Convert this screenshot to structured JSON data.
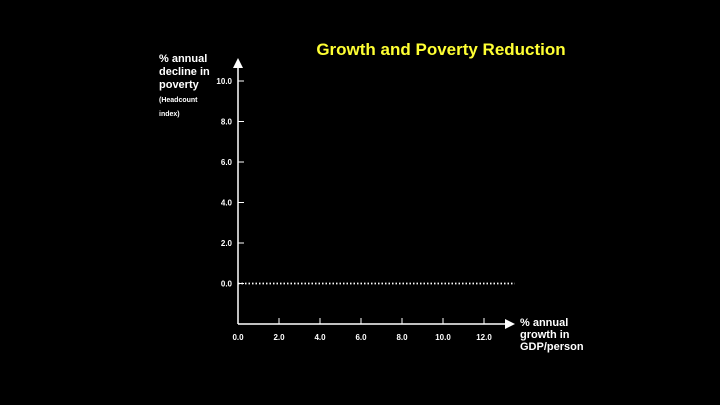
{
  "title": "Growth and Poverty Reduction",
  "colors": {
    "background": "#000000",
    "title": "#ffff33",
    "axis": "#ffffff"
  },
  "chart_data": {
    "type": "line",
    "title": "Growth and Poverty Reduction",
    "ylabel": "% annual decline in poverty",
    "ylabel_sub": "(Headcount index)",
    "xlabel": "% annual growth in GDP/person",
    "xlim": [
      0,
      13.5
    ],
    "ylim": [
      -2,
      11.5
    ],
    "x_ticks": [
      {
        "value": 0,
        "label": "0.0"
      },
      {
        "value": 2,
        "label": "2.0"
      },
      {
        "value": 4,
        "label": "4.0"
      },
      {
        "value": 6,
        "label": "6.0"
      },
      {
        "value": 8,
        "label": "8.0"
      },
      {
        "value": 10,
        "label": "10.0"
      },
      {
        "value": 12,
        "label": "12.0"
      }
    ],
    "y_ticks": [
      {
        "value": 0,
        "label": "0.0"
      },
      {
        "value": 2,
        "label": "2.0"
      },
      {
        "value": 4,
        "label": "4.0"
      },
      {
        "value": 6,
        "label": "6.0"
      },
      {
        "value": 8,
        "label": "8.0"
      },
      {
        "value": 10,
        "label": "10.0"
      }
    ],
    "series": [
      {
        "style": "dotted",
        "x": [
          0,
          13.5
        ],
        "y": [
          0,
          0
        ]
      }
    ],
    "grid": false,
    "legend": "none"
  }
}
